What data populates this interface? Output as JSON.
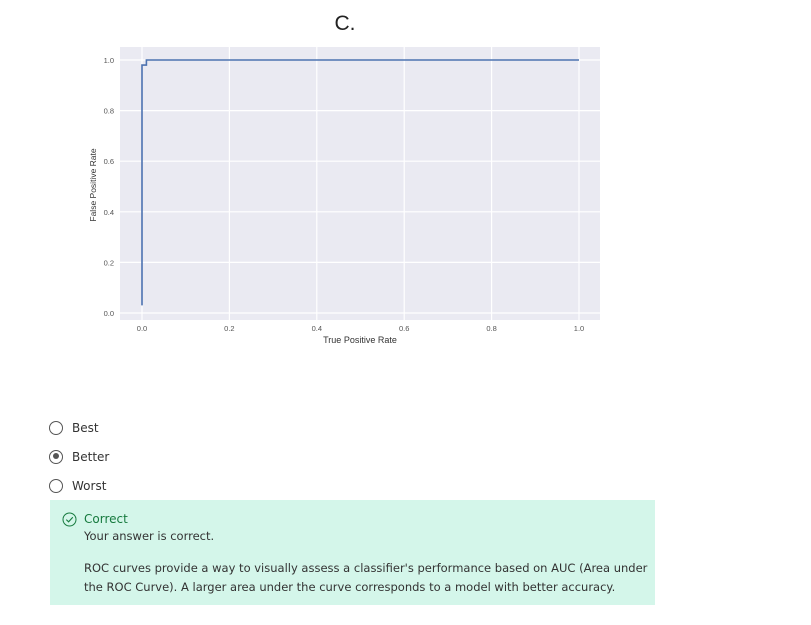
{
  "question": {
    "label": "C."
  },
  "chart_data": {
    "type": "line",
    "title": "",
    "xlabel": "True Positive Rate",
    "ylabel": "False Positive Rate",
    "xlim": [
      0.0,
      1.0
    ],
    "ylim": [
      0.0,
      1.0
    ],
    "xticks": [
      "0.0",
      "0.2",
      "0.4",
      "0.6",
      "0.8",
      "1.0"
    ],
    "yticks": [
      "0.0",
      "0.2",
      "0.4",
      "0.6",
      "0.8",
      "1.0"
    ],
    "grid": true,
    "series": [
      {
        "name": "",
        "color": "#4c72b0",
        "x": [
          0.0,
          0.0,
          0.0,
          0.01,
          0.01,
          0.03,
          1.0
        ],
        "y": [
          0.03,
          0.98,
          0.98,
          0.98,
          1.0,
          1.0,
          1.0
        ]
      }
    ]
  },
  "options": [
    {
      "label": "Best",
      "checked": false
    },
    {
      "label": "Better",
      "checked": true
    },
    {
      "label": "Worst",
      "checked": false
    }
  ],
  "feedback": {
    "title": "Correct",
    "subtitle": "Your answer is correct.",
    "explanation": "ROC curves provide a way to visually assess a classifier's performance based on AUC (Area under the ROC Curve). A larger area under the curve corresponds to a model with better accuracy.",
    "icon": "check-circle-icon",
    "background": "#d4f6ea",
    "accent": "#167a3e"
  }
}
